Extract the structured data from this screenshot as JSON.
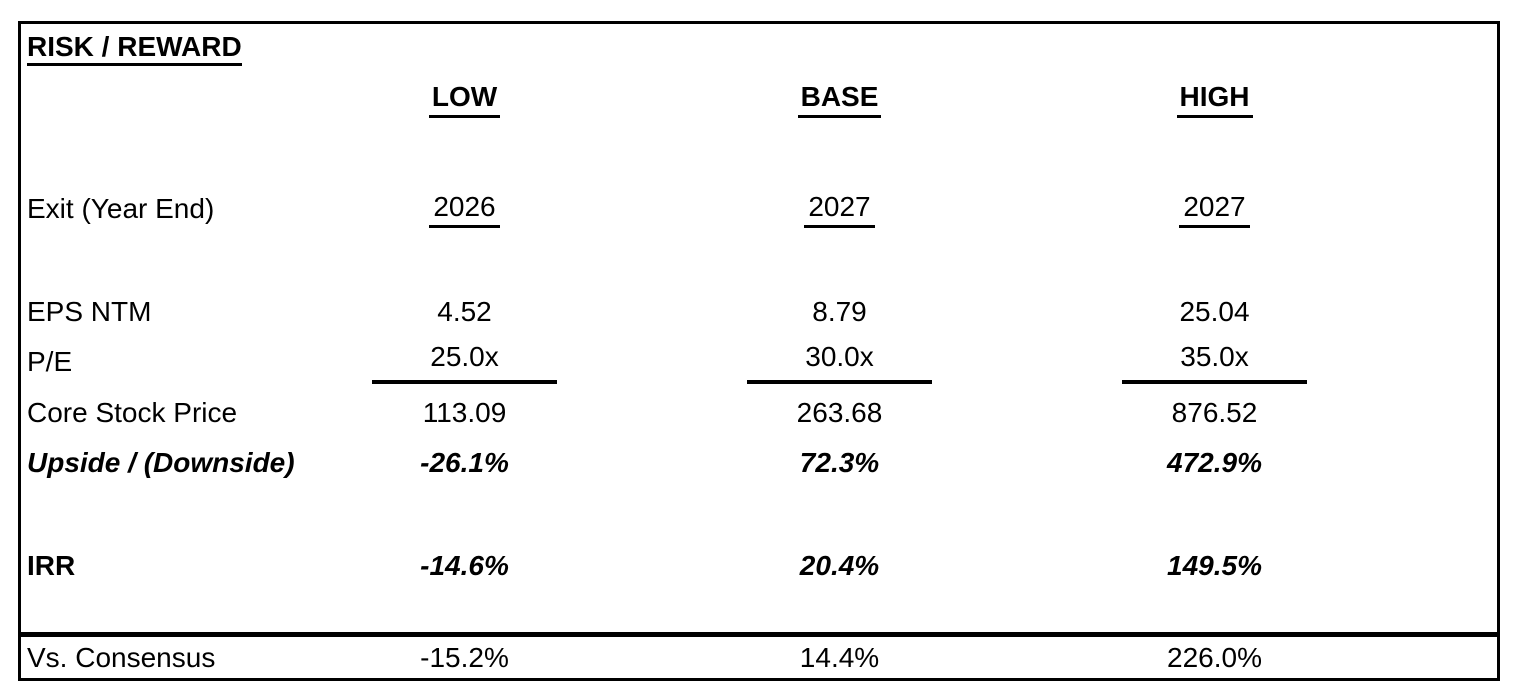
{
  "page": {
    "background_color": "#ffffff",
    "border_color": "#000000",
    "text_color": "#000000"
  },
  "table": {
    "title": "RISK / REWARD",
    "columns": [
      {
        "label": "LOW"
      },
      {
        "label": "BASE"
      },
      {
        "label": "HIGH"
      }
    ],
    "rows": [
      {
        "id": "exit-year-end",
        "label": "Exit (Year End)",
        "values": [
          "2026",
          "2027",
          "2027"
        ]
      },
      {
        "id": "eps-ntm",
        "label": "EPS NTM",
        "values": [
          "4.52",
          "8.79",
          "25.04"
        ]
      },
      {
        "id": "pe",
        "label": "P/E",
        "values": [
          "25.0x",
          "30.0x",
          "35.0x"
        ]
      },
      {
        "id": "core-stock-price",
        "label": "Core Stock Price",
        "values": [
          "113.09",
          "263.68",
          "876.52"
        ]
      },
      {
        "id": "upside-downside",
        "label": "Upside / (Downside)",
        "values": [
          "-26.1%",
          "72.3%",
          "472.9%"
        ]
      },
      {
        "id": "irr",
        "label": "IRR",
        "values": [
          "-14.6%",
          "20.4%",
          "149.5%"
        ]
      },
      {
        "id": "vs-consensus",
        "label": "Vs. Consensus",
        "values": [
          "-15.2%",
          "14.4%",
          "226.0%"
        ]
      }
    ]
  }
}
